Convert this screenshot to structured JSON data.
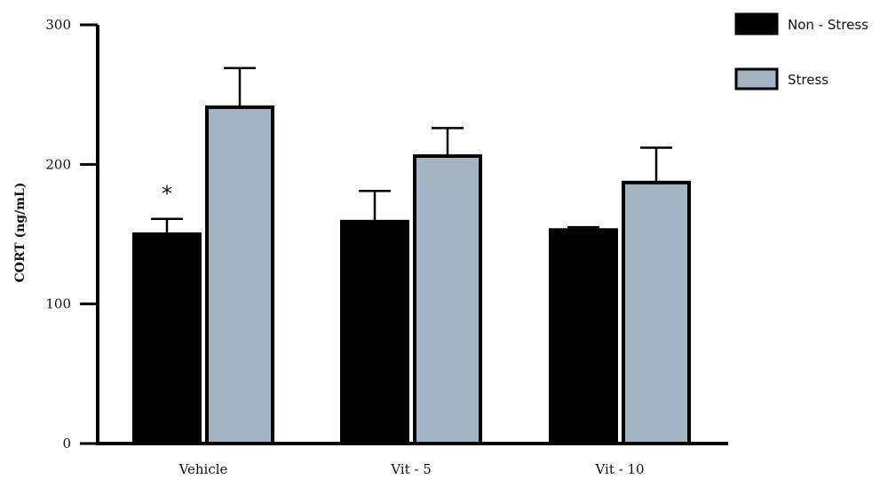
{
  "chart_data": {
    "type": "bar",
    "title": "",
    "xlabel": "",
    "ylabel": "CORT (ng/mL)",
    "ylim": [
      0,
      300
    ],
    "yticks": [
      0,
      100,
      200,
      300
    ],
    "categories": [
      "Vehicle",
      "Vit - 5",
      "Vit - 10"
    ],
    "series": [
      {
        "name": "Non - Stress",
        "color": "#000000",
        "values": [
          150,
          159,
          153
        ],
        "errors": [
          11,
          22,
          2
        ]
      },
      {
        "name": "Stress",
        "color": "#a3b4c2",
        "values": [
          241,
          206,
          187
        ],
        "errors": [
          28,
          20,
          25
        ]
      }
    ],
    "annotations": [
      {
        "text": "*",
        "category": "Vehicle",
        "series": "Non - Stress"
      }
    ],
    "legend_position": "top-right",
    "grid": false
  }
}
